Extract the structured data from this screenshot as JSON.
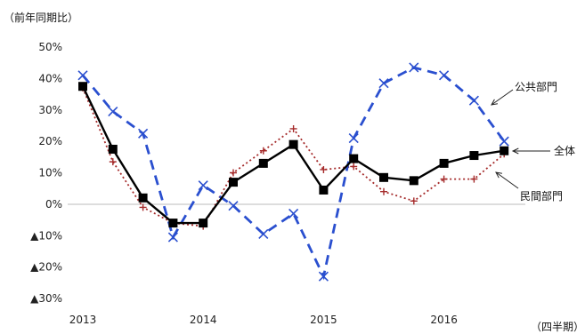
{
  "chart_data": {
    "type": "line",
    "title": "",
    "ylabel": "（前年同期比）",
    "xlabel": "（四半期）",
    "ylim": [
      -30,
      50
    ],
    "yticks": [
      {
        "value": 50,
        "label": "50%"
      },
      {
        "value": 40,
        "label": "40%"
      },
      {
        "value": 30,
        "label": "30%"
      },
      {
        "value": 20,
        "label": "20%"
      },
      {
        "value": 10,
        "label": "10%"
      },
      {
        "value": 0,
        "label": "0%"
      },
      {
        "value": -10,
        "label": "▲10%"
      },
      {
        "value": -20,
        "label": "▲20%"
      },
      {
        "value": -30,
        "label": "▲30%"
      }
    ],
    "x": [
      "2013Q1",
      "2013Q2",
      "2013Q3",
      "2013Q4",
      "2014Q1",
      "2014Q2",
      "2014Q3",
      "2014Q4",
      "2015Q1",
      "2015Q2",
      "2015Q3",
      "2015Q4",
      "2016Q1",
      "2016Q2",
      "2016Q3"
    ],
    "xtick_labels": [
      {
        "index": 0,
        "label": "2013"
      },
      {
        "index": 4,
        "label": "2014"
      },
      {
        "index": 8,
        "label": "2015"
      },
      {
        "index": 12,
        "label": "2016"
      }
    ],
    "grid": false,
    "series": [
      {
        "name": "全体",
        "color": "#000000",
        "style": "solid",
        "marker": "square",
        "values": [
          37.5,
          17.5,
          2,
          -6,
          -6,
          7,
          13,
          19,
          4.5,
          14.5,
          8.5,
          7.5,
          13,
          15.5,
          17
        ]
      },
      {
        "name": "公共部門",
        "color": "#2a4fcf",
        "style": "dashed",
        "marker": "x",
        "values": [
          41,
          29.5,
          22.5,
          -10.5,
          6,
          -0.5,
          -9.5,
          -3,
          -23,
          21,
          38.5,
          43.5,
          41,
          33,
          20
        ]
      },
      {
        "name": "民間部門",
        "color": "#a52a2a",
        "style": "dotted",
        "marker": "plus",
        "values": [
          37,
          13.5,
          -1,
          -6,
          -7,
          10,
          17,
          24,
          11,
          12,
          4,
          1,
          8,
          8,
          16
        ]
      }
    ],
    "annotations": [
      "公共部門",
      "全体",
      "民間部門"
    ]
  }
}
